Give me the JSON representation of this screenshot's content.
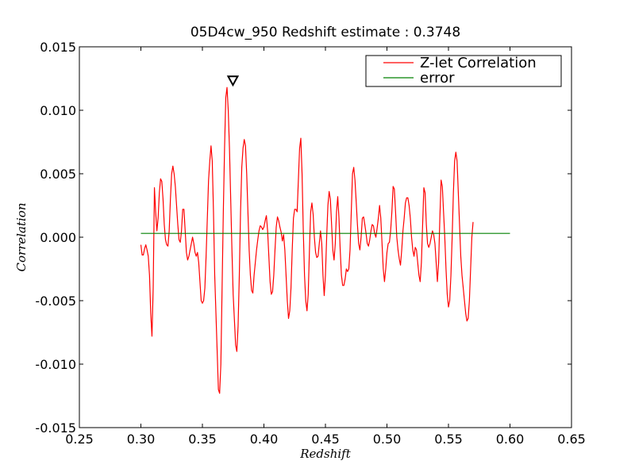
{
  "chart_data": {
    "type": "line",
    "title": "05D4cw_950 Redshift estimate : 0.3748",
    "xlabel": "Redshift",
    "ylabel": "Correlation",
    "xlim": [
      0.25,
      0.65
    ],
    "ylim": [
      -0.015,
      0.015
    ],
    "xticks": [
      0.25,
      0.3,
      0.35,
      0.4,
      0.45,
      0.5,
      0.55,
      0.6,
      0.65
    ],
    "xtick_labels": [
      "0.25",
      "0.30",
      "0.35",
      "0.40",
      "0.45",
      "0.50",
      "0.55",
      "0.60",
      "0.65"
    ],
    "yticks": [
      -0.015,
      -0.01,
      -0.005,
      0.0,
      0.005,
      0.01,
      0.015
    ],
    "ytick_labels": [
      "-0.015",
      "-0.010",
      "-0.005",
      "0.000",
      "0.005",
      "0.010",
      "0.015"
    ],
    "grid": false,
    "legend_position": "top-right",
    "series": [
      {
        "name": "Z-let Correlation",
        "color": "#ff0000",
        "points": [
          [
            0.3,
            -0.0006
          ],
          [
            0.301,
            -0.0014
          ],
          [
            0.302,
            -0.0014
          ],
          [
            0.303,
            -0.0009
          ],
          [
            0.304,
            -0.0006
          ],
          [
            0.305,
            -0.001
          ],
          [
            0.306,
            -0.0015
          ],
          [
            0.307,
            -0.003
          ],
          [
            0.308,
            -0.006
          ],
          [
            0.309,
            -0.0078
          ],
          [
            0.31,
            -0.004
          ],
          [
            0.311,
            0.0039
          ],
          [
            0.312,
            0.002
          ],
          [
            0.313,
            0.0005
          ],
          [
            0.314,
            0.0015
          ],
          [
            0.315,
            0.0035
          ],
          [
            0.316,
            0.0046
          ],
          [
            0.317,
            0.0044
          ],
          [
            0.318,
            0.003
          ],
          [
            0.319,
            0.001
          ],
          [
            0.32,
            -0.0002
          ],
          [
            0.321,
            -0.0006
          ],
          [
            0.322,
            -0.0007
          ],
          [
            0.323,
            0.0005
          ],
          [
            0.324,
            0.003
          ],
          [
            0.325,
            0.005
          ],
          [
            0.326,
            0.0056
          ],
          [
            0.327,
            0.005
          ],
          [
            0.328,
            0.004
          ],
          [
            0.329,
            0.0025
          ],
          [
            0.33,
            0.001
          ],
          [
            0.331,
            -0.0002
          ],
          [
            0.332,
            -0.0004
          ],
          [
            0.333,
            0.0005
          ],
          [
            0.334,
            0.0022
          ],
          [
            0.335,
            0.0022
          ],
          [
            0.336,
            0.0005
          ],
          [
            0.337,
            -0.0012
          ],
          [
            0.338,
            -0.0018
          ],
          [
            0.339,
            -0.0015
          ],
          [
            0.34,
            -0.001
          ],
          [
            0.341,
            -0.0005
          ],
          [
            0.342,
            0.0
          ],
          [
            0.343,
            -0.0005
          ],
          [
            0.344,
            -0.0012
          ],
          [
            0.345,
            -0.0015
          ],
          [
            0.346,
            -0.0012
          ],
          [
            0.347,
            -0.002
          ],
          [
            0.348,
            -0.0035
          ],
          [
            0.349,
            -0.005
          ],
          [
            0.35,
            -0.0052
          ],
          [
            0.351,
            -0.005
          ],
          [
            0.352,
            -0.004
          ],
          [
            0.353,
            -0.0015
          ],
          [
            0.354,
            0.0015
          ],
          [
            0.355,
            0.0045
          ],
          [
            0.356,
            0.006
          ],
          [
            0.357,
            0.0072
          ],
          [
            0.358,
            0.006
          ],
          [
            0.359,
            0.002
          ],
          [
            0.36,
            -0.003
          ],
          [
            0.361,
            -0.006
          ],
          [
            0.362,
            -0.009
          ],
          [
            0.363,
            -0.012
          ],
          [
            0.364,
            -0.0123
          ],
          [
            0.365,
            -0.01
          ],
          [
            0.366,
            -0.004
          ],
          [
            0.367,
            0.002
          ],
          [
            0.368,
            0.007
          ],
          [
            0.369,
            0.011
          ],
          [
            0.37,
            0.0118
          ],
          [
            0.371,
            0.01
          ],
          [
            0.372,
            0.007
          ],
          [
            0.373,
            0.003
          ],
          [
            0.374,
            -0.001
          ],
          [
            0.375,
            -0.0045
          ],
          [
            0.376,
            -0.0065
          ],
          [
            0.377,
            -0.0085
          ],
          [
            0.378,
            -0.009
          ],
          [
            0.379,
            -0.007
          ],
          [
            0.38,
            -0.003
          ],
          [
            0.381,
            0.002
          ],
          [
            0.382,
            0.0055
          ],
          [
            0.383,
            0.007
          ],
          [
            0.384,
            0.0077
          ],
          [
            0.385,
            0.0072
          ],
          [
            0.386,
            0.005
          ],
          [
            0.387,
            0.002
          ],
          [
            0.388,
            -0.001
          ],
          [
            0.389,
            -0.003
          ],
          [
            0.39,
            -0.0042
          ],
          [
            0.391,
            -0.0044
          ],
          [
            0.392,
            -0.003
          ],
          [
            0.393,
            -0.002
          ],
          [
            0.394,
            -0.001
          ],
          [
            0.395,
            -0.0002
          ],
          [
            0.396,
            0.0005
          ],
          [
            0.397,
            0.0009
          ],
          [
            0.398,
            0.0008
          ],
          [
            0.399,
            0.0006
          ],
          [
            0.4,
            0.0008
          ],
          [
            0.401,
            0.0013
          ],
          [
            0.402,
            0.0017
          ],
          [
            0.403,
            0.0005
          ],
          [
            0.404,
            -0.0015
          ],
          [
            0.405,
            -0.0035
          ],
          [
            0.406,
            -0.0045
          ],
          [
            0.407,
            -0.0043
          ],
          [
            0.408,
            -0.003
          ],
          [
            0.409,
            -0.001
          ],
          [
            0.41,
            0.0008
          ],
          [
            0.411,
            0.0016
          ],
          [
            0.412,
            0.0013
          ],
          [
            0.413,
            0.0008
          ],
          [
            0.414,
            0.0004
          ],
          [
            0.415,
            -0.0003
          ],
          [
            0.416,
            0.0002
          ],
          [
            0.417,
            -0.001
          ],
          [
            0.418,
            -0.003
          ],
          [
            0.419,
            -0.005
          ],
          [
            0.42,
            -0.0064
          ],
          [
            0.421,
            -0.0058
          ],
          [
            0.422,
            -0.004
          ],
          [
            0.423,
            -0.001
          ],
          [
            0.424,
            0.0015
          ],
          [
            0.425,
            0.0022
          ],
          [
            0.426,
            0.0022
          ],
          [
            0.427,
            0.002
          ],
          [
            0.428,
            0.0045
          ],
          [
            0.429,
            0.007
          ],
          [
            0.43,
            0.0078
          ],
          [
            0.431,
            0.005
          ],
          [
            0.432,
            0.0005
          ],
          [
            0.433,
            -0.003
          ],
          [
            0.434,
            -0.005
          ],
          [
            0.435,
            -0.0058
          ],
          [
            0.436,
            -0.0045
          ],
          [
            0.437,
            -0.001
          ],
          [
            0.438,
            0.002
          ],
          [
            0.439,
            0.0027
          ],
          [
            0.44,
            0.0018
          ],
          [
            0.441,
            0.0
          ],
          [
            0.442,
            -0.0012
          ],
          [
            0.443,
            -0.0016
          ],
          [
            0.444,
            -0.0015
          ],
          [
            0.445,
            -0.0005
          ],
          [
            0.446,
            0.0005
          ],
          [
            0.447,
            -0.0005
          ],
          [
            0.448,
            -0.003
          ],
          [
            0.449,
            -0.0046
          ],
          [
            0.45,
            -0.003
          ],
          [
            0.451,
            0.0
          ],
          [
            0.452,
            0.0025
          ],
          [
            0.453,
            0.0036
          ],
          [
            0.454,
            0.003
          ],
          [
            0.455,
            0.001
          ],
          [
            0.456,
            -0.001
          ],
          [
            0.457,
            -0.0018
          ],
          [
            0.458,
            -0.0005
          ],
          [
            0.459,
            0.002
          ],
          [
            0.46,
            0.0032
          ],
          [
            0.461,
            0.0015
          ],
          [
            0.462,
            -0.001
          ],
          [
            0.463,
            -0.003
          ],
          [
            0.464,
            -0.0038
          ],
          [
            0.465,
            -0.0038
          ],
          [
            0.466,
            -0.0033
          ],
          [
            0.467,
            -0.0025
          ],
          [
            0.468,
            -0.0027
          ],
          [
            0.469,
            -0.0025
          ],
          [
            0.47,
            -0.001
          ],
          [
            0.471,
            0.002
          ],
          [
            0.472,
            0.005
          ],
          [
            0.473,
            0.0055
          ],
          [
            0.474,
            0.0045
          ],
          [
            0.475,
            0.0028
          ],
          [
            0.476,
            0.001
          ],
          [
            0.477,
            -0.0005
          ],
          [
            0.478,
            -0.001
          ],
          [
            0.479,
            0.0
          ],
          [
            0.48,
            0.0015
          ],
          [
            0.481,
            0.0016
          ],
          [
            0.482,
            0.001
          ],
          [
            0.483,
            0.0003
          ],
          [
            0.484,
            -0.0005
          ],
          [
            0.485,
            -0.0007
          ],
          [
            0.486,
            -0.0002
          ],
          [
            0.487,
            0.0005
          ],
          [
            0.488,
            0.001
          ],
          [
            0.489,
            0.0009
          ],
          [
            0.49,
            0.0003
          ],
          [
            0.491,
            0.0
          ],
          [
            0.492,
            0.0007
          ],
          [
            0.493,
            0.0015
          ],
          [
            0.494,
            0.0025
          ],
          [
            0.495,
            0.0015
          ],
          [
            0.496,
            -0.0005
          ],
          [
            0.497,
            -0.0025
          ],
          [
            0.498,
            -0.0035
          ],
          [
            0.499,
            -0.0025
          ],
          [
            0.5,
            -0.0012
          ],
          [
            0.501,
            -0.0005
          ],
          [
            0.502,
            -0.0004
          ],
          [
            0.503,
            0.0005
          ],
          [
            0.504,
            0.002
          ],
          [
            0.505,
            0.004
          ],
          [
            0.506,
            0.0038
          ],
          [
            0.507,
            0.002
          ],
          [
            0.508,
            0.0
          ],
          [
            0.509,
            -0.001
          ],
          [
            0.51,
            -0.0017
          ],
          [
            0.511,
            -0.0022
          ],
          [
            0.512,
            -0.001
          ],
          [
            0.513,
            0.0005
          ],
          [
            0.514,
            0.0015
          ],
          [
            0.515,
            0.0027
          ],
          [
            0.516,
            0.0031
          ],
          [
            0.517,
            0.0031
          ],
          [
            0.518,
            0.0025
          ],
          [
            0.519,
            0.0015
          ],
          [
            0.52,
            0.0
          ],
          [
            0.521,
            -0.001
          ],
          [
            0.522,
            -0.0015
          ],
          [
            0.523,
            -0.0008
          ],
          [
            0.524,
            -0.001
          ],
          [
            0.525,
            -0.002
          ],
          [
            0.526,
            -0.003
          ],
          [
            0.527,
            -0.0035
          ],
          [
            0.528,
            -0.002
          ],
          [
            0.529,
            0.001
          ],
          [
            0.53,
            0.0039
          ],
          [
            0.531,
            0.0035
          ],
          [
            0.532,
            0.001
          ],
          [
            0.533,
            -0.0005
          ],
          [
            0.534,
            -0.0008
          ],
          [
            0.535,
            -0.0005
          ],
          [
            0.536,
            0.0
          ],
          [
            0.537,
            0.0005
          ],
          [
            0.538,
            0.0002
          ],
          [
            0.539,
            -0.0005
          ],
          [
            0.54,
            -0.002
          ],
          [
            0.541,
            -0.0035
          ],
          [
            0.542,
            -0.002
          ],
          [
            0.543,
            0.0015
          ],
          [
            0.544,
            0.0045
          ],
          [
            0.545,
            0.004
          ],
          [
            0.546,
            0.002
          ],
          [
            0.547,
            0.0
          ],
          [
            0.548,
            -0.0025
          ],
          [
            0.549,
            -0.0045
          ],
          [
            0.55,
            -0.0055
          ],
          [
            0.551,
            -0.005
          ],
          [
            0.552,
            -0.003
          ],
          [
            0.553,
            0.0
          ],
          [
            0.554,
            0.0035
          ],
          [
            0.555,
            0.006
          ],
          [
            0.556,
            0.0067
          ],
          [
            0.557,
            0.006
          ],
          [
            0.558,
            0.0035
          ],
          [
            0.559,
            0.001
          ],
          [
            0.56,
            -0.0015
          ],
          [
            0.561,
            -0.003
          ],
          [
            0.562,
            -0.004
          ],
          [
            0.563,
            -0.005
          ],
          [
            0.564,
            -0.006
          ],
          [
            0.565,
            -0.0066
          ],
          [
            0.566,
            -0.0064
          ],
          [
            0.567,
            -0.005
          ],
          [
            0.568,
            -0.0025
          ],
          [
            0.569,
            0.0
          ],
          [
            0.57,
            0.0012
          ]
        ]
      },
      {
        "name": "error",
        "color": "#008000",
        "points": [
          [
            0.3,
            0.0003
          ],
          [
            0.6,
            0.0003
          ]
        ]
      }
    ],
    "peak_marker": {
      "x": 0.3748,
      "y": 0.0118,
      "shape": "triangle-down"
    }
  }
}
